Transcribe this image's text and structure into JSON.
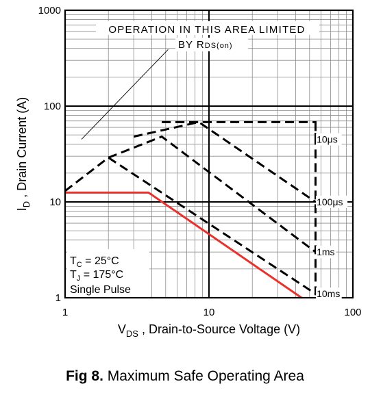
{
  "chart_data": {
    "type": "line",
    "title": "",
    "x_scale": "log",
    "y_scale": "log",
    "xlim": [
      1,
      100
    ],
    "ylim": [
      1,
      1000
    ],
    "x_ticks": [
      "1",
      "10",
      "100"
    ],
    "y_ticks": [
      "1",
      "10",
      "100",
      "1000"
    ],
    "grid": true,
    "xlabel": {
      "main": "V",
      "sub": "DS",
      "rest": " , Drain-to-Source Voltage (V)"
    },
    "ylabel": {
      "main": "I",
      "sub": "D",
      "rest": " , Drain Current (A)"
    },
    "annotation": {
      "line1": "OPERATION IN THIS AREA LIMITED",
      "line2_prefix": "BY R",
      "line2_sub": "DS(on)",
      "pointer_from": [
        1.3,
        45
      ],
      "pointer_to": [
        5.2,
        390
      ]
    },
    "conditions": [
      {
        "main": "T",
        "sub": "C",
        "rest": "  = 25°C"
      },
      {
        "main": "T",
        "sub": "J",
        "rest": "  = 175°C"
      },
      {
        "main": "Single Pulse",
        "sub": "",
        "rest": ""
      }
    ],
    "series": [
      {
        "name": "10μs",
        "style": "dashed",
        "color": "#000000",
        "x": [
          4.7,
          55,
          55
        ],
        "y": [
          68,
          68,
          45
        ]
      },
      {
        "name": "100μs",
        "style": "dashed",
        "color": "#000000",
        "x": [
          3.0,
          8.5,
          55,
          55
        ],
        "y": [
          48,
          68,
          10,
          10
        ]
      },
      {
        "name": "1ms",
        "style": "dashed",
        "color": "#000000",
        "x": [
          2.0,
          4.7,
          55,
          55
        ],
        "y": [
          29,
          48,
          3.0,
          3.0
        ]
      },
      {
        "name": "10ms",
        "style": "dashed",
        "color": "#000000",
        "x": [
          1.0,
          2.0,
          55,
          55
        ],
        "y": [
          13,
          29,
          1.1,
          1.1
        ]
      },
      {
        "name": "",
        "style": "dashed",
        "color": "#000000",
        "x": [
          4.7,
          4.7,
          8.5
        ],
        "y": [
          68,
          68,
          68
        ]
      },
      {
        "name": "",
        "style": "dashed",
        "color": "#000000",
        "x": [
          55,
          55
        ],
        "y": [
          68,
          1
        ]
      },
      {
        "name": "",
        "style": "solid",
        "color": "#e8322b",
        "x": [
          1.0,
          3.8,
          44
        ],
        "y": [
          12.5,
          12.5,
          1.0
        ]
      }
    ],
    "line_labels": [
      {
        "text": "10μs",
        "x": 56,
        "y": 45
      },
      {
        "text": "100μs",
        "x": 56,
        "y": 10
      },
      {
        "text": "1ms",
        "x": 56,
        "y": 3.0
      },
      {
        "text": "10ms",
        "x": 56,
        "y": 1.1
      }
    ]
  },
  "caption": {
    "figure": "Fig 8.",
    "text": "Maximum Safe Operating Area"
  }
}
